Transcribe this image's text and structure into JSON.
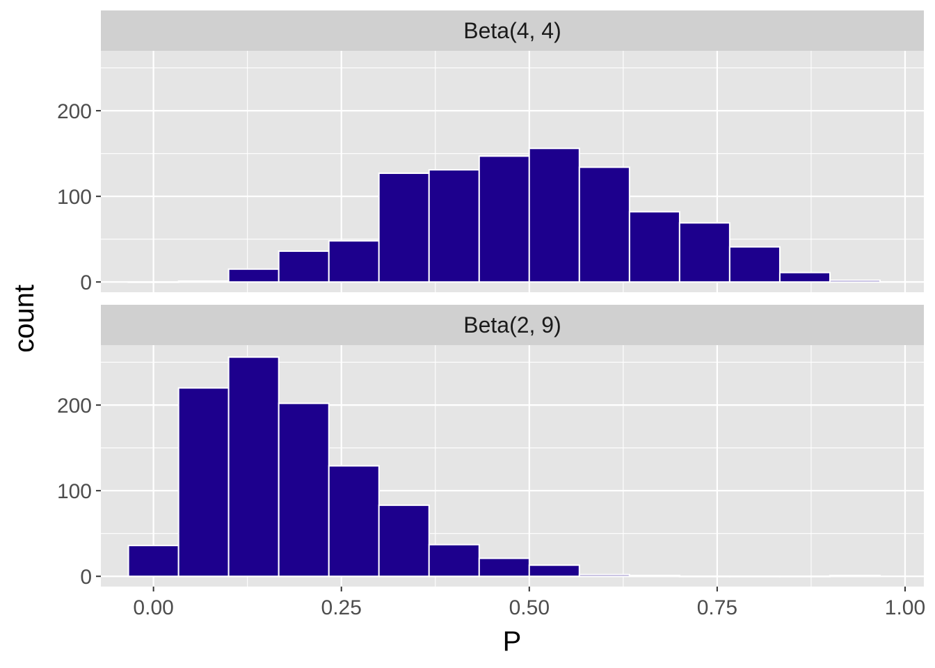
{
  "chart_data": {
    "type": "bar",
    "xlabel": "P",
    "ylabel": "count",
    "xlim": [
      -0.07,
      1.025
    ],
    "ylim": [
      -12,
      270
    ],
    "x_ticks": [
      {
        "value": 0.0,
        "label": "0.00"
      },
      {
        "value": 0.25,
        "label": "0.25"
      },
      {
        "value": 0.5,
        "label": "0.50"
      },
      {
        "value": 0.75,
        "label": "0.75"
      },
      {
        "value": 1.0,
        "label": "1.00"
      }
    ],
    "y_ticks": [
      {
        "value": 0,
        "label": "0"
      },
      {
        "value": 100,
        "label": "100"
      },
      {
        "value": 200,
        "label": "200"
      }
    ],
    "bin_width": 0.0667,
    "bar_color": "#1D008D",
    "panel_background": "#E5E5E5",
    "strip_background": "#D0D0D0",
    "grid": true,
    "panels": [
      {
        "strip_label": "Beta(4, 4)",
        "bins": [
          {
            "x": 0.0,
            "count": 0
          },
          {
            "x": 0.0667,
            "count": 1
          },
          {
            "x": 0.1333,
            "count": 15
          },
          {
            "x": 0.2,
            "count": 36
          },
          {
            "x": 0.2667,
            "count": 48
          },
          {
            "x": 0.3333,
            "count": 127
          },
          {
            "x": 0.4,
            "count": 131
          },
          {
            "x": 0.4667,
            "count": 147
          },
          {
            "x": 0.5333,
            "count": 156
          },
          {
            "x": 0.6,
            "count": 134
          },
          {
            "x": 0.6667,
            "count": 82
          },
          {
            "x": 0.7333,
            "count": 69
          },
          {
            "x": 0.8,
            "count": 41
          },
          {
            "x": 0.8667,
            "count": 11
          },
          {
            "x": 0.9333,
            "count": 2
          }
        ]
      },
      {
        "strip_label": "Beta(2, 9)",
        "bins": [
          {
            "x": 0.0,
            "count": 36
          },
          {
            "x": 0.0667,
            "count": 220
          },
          {
            "x": 0.1333,
            "count": 256
          },
          {
            "x": 0.2,
            "count": 202
          },
          {
            "x": 0.2667,
            "count": 129
          },
          {
            "x": 0.3333,
            "count": 83
          },
          {
            "x": 0.4,
            "count": 37
          },
          {
            "x": 0.4667,
            "count": 21
          },
          {
            "x": 0.5333,
            "count": 13
          },
          {
            "x": 0.6,
            "count": 2
          },
          {
            "x": 0.6667,
            "count": 1
          },
          {
            "x": 0.7333,
            "count": 0
          },
          {
            "x": 0.8,
            "count": 0
          },
          {
            "x": 0.8667,
            "count": 0
          },
          {
            "x": 0.9333,
            "count": 1
          }
        ]
      }
    ]
  }
}
